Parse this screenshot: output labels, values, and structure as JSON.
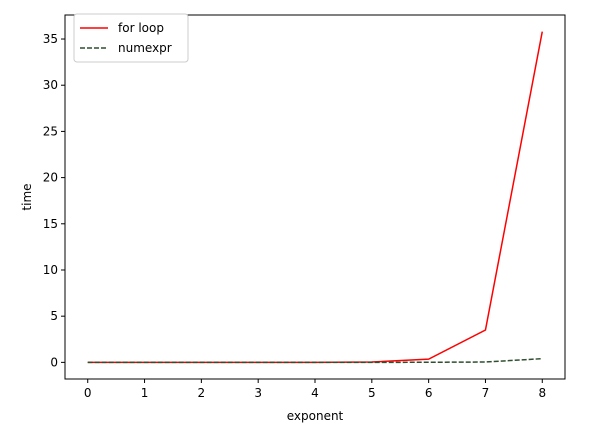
{
  "chart_data": {
    "type": "line",
    "title": "",
    "xlabel": "exponent",
    "ylabel": "time",
    "xlim": [
      -0.4,
      8.4
    ],
    "ylim": [
      -1.8,
      37.6
    ],
    "xticks": [
      0,
      1,
      2,
      3,
      4,
      5,
      6,
      7,
      8
    ],
    "yticks": [
      0,
      5,
      10,
      15,
      20,
      25,
      30,
      35
    ],
    "x": [
      0,
      1,
      2,
      3,
      4,
      5,
      6,
      7,
      8
    ],
    "grid": false,
    "legend_position": "top-left",
    "series": [
      {
        "name": "for loop",
        "values": [
          0.0,
          0.0,
          0.0,
          0.0,
          0.0,
          0.04,
          0.35,
          3.5,
          35.8
        ],
        "color": "#ff0000",
        "style": "solid"
      },
      {
        "name": "numexpr",
        "values": [
          0.0,
          0.0,
          0.0,
          0.0,
          0.0,
          0.0,
          0.01,
          0.04,
          0.4
        ],
        "color": "#2f4f2f",
        "style": "dashed"
      }
    ]
  }
}
